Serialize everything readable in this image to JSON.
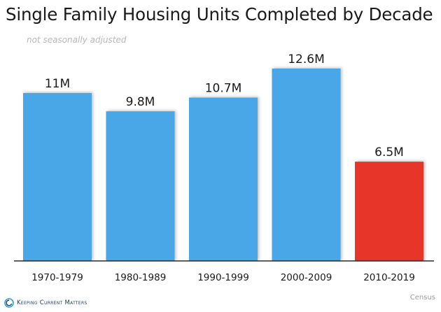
{
  "chart_data": {
    "type": "bar",
    "title": "Single Family Housing Units Completed by Decade",
    "subtitle": "not seasonally adjusted",
    "categories": [
      "1970-1979",
      "1980-1989",
      "1990-1999",
      "2000-2009",
      "2010-2019"
    ],
    "values": [
      11,
      9.8,
      10.7,
      12.6,
      6.5
    ],
    "data_labels": [
      "11M",
      "9.8M",
      "10.7M",
      "12.6M",
      "6.5M"
    ],
    "colors": [
      "#4aa7e8",
      "#4aa7e8",
      "#4aa7e8",
      "#4aa7e8",
      "#e8352a"
    ],
    "xlabel": "",
    "ylabel": "",
    "ylim": [
      0,
      12.6
    ],
    "grid": false,
    "legend": "none"
  },
  "footer": {
    "logo_text": "Keeping Current Matters",
    "source": "Census"
  }
}
